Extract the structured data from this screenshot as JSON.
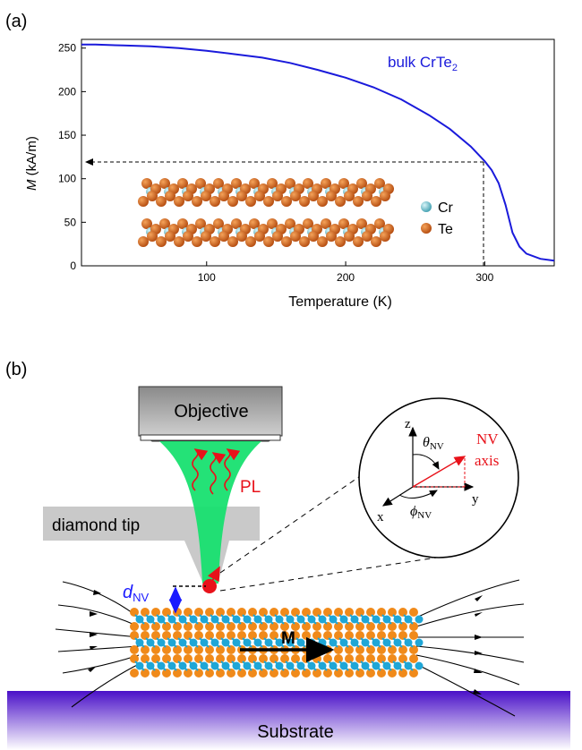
{
  "panel_a": {
    "label": "(a)",
    "y_axis_label_italic": "M",
    "y_axis_label_unit": " (kA/m)",
    "x_axis_label": "Temperature (K)",
    "curve_label_main": "bulk CrTe",
    "curve_label_sub": "2",
    "legend": [
      {
        "name": "Cr",
        "color": "#5bbcc9"
      },
      {
        "name": "Te",
        "color": "#d4661e"
      }
    ]
  },
  "panel_b": {
    "label": "(b)",
    "objective": "Objective",
    "diamond_tip": "diamond tip",
    "pl": "PL",
    "d_nv_main": "d",
    "d_nv_sub": "NV",
    "magnetization": "M",
    "substrate": "Substrate",
    "inset": {
      "z": "z",
      "x": "x",
      "y": "y",
      "theta_main": "θ",
      "theta_sub": "NV",
      "phi_main": "ϕ",
      "phi_sub": "NV",
      "nv_axis_line1": "NV",
      "nv_axis_line2": "axis"
    }
  },
  "colors": {
    "curve": "#1a1adb",
    "accent_red": "#e8121a",
    "beam_green": "#18e070",
    "d_nv_blue": "#1a1aff",
    "te_orange": "#f08a1a",
    "cr_cyan": "#1fa6d6"
  },
  "chart_data": {
    "type": "line",
    "title": "",
    "xlabel": "Temperature (K)",
    "ylabel": "M (kA/m)",
    "xlim": [
      10,
      350
    ],
    "ylim": [
      0,
      260
    ],
    "xticks": [
      100,
      200,
      300
    ],
    "yticks": [
      0,
      50,
      100,
      150,
      200,
      250
    ],
    "grid": false,
    "series": [
      {
        "name": "bulk CrTe2",
        "x": [
          10,
          20,
          40,
          60,
          80,
          100,
          120,
          140,
          160,
          180,
          200,
          220,
          240,
          260,
          275,
          290,
          300,
          305,
          310,
          315,
          320,
          325,
          330,
          340,
          350
        ],
        "y": [
          254,
          254,
          253,
          252,
          250,
          247,
          243,
          239,
          233,
          225,
          216,
          205,
          191,
          173,
          157,
          137,
          120,
          110,
          95,
          70,
          38,
          22,
          14,
          8,
          6
        ]
      }
    ],
    "annotation": {
      "temperature": 300,
      "magnetization": 120
    }
  }
}
